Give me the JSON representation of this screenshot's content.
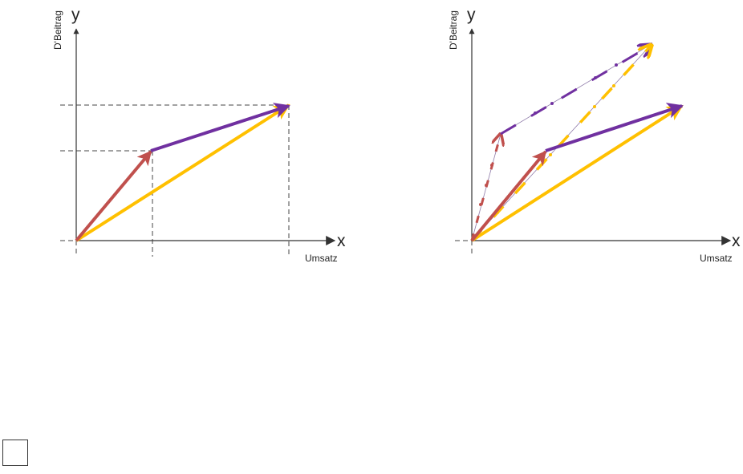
{
  "colors": {
    "red_vector": "#c0504d",
    "purple_vector": "#7030a0",
    "yellow_vector": "#ffc000",
    "axis": "#333333",
    "guide": "#444444"
  },
  "left_diagram": {
    "y_axis_letter": "y",
    "x_axis_letter": "x",
    "y_axis_label": "D'Beitrag",
    "x_axis_label": "Umsatz"
  },
  "right_diagram": {
    "y_axis_letter": "y",
    "x_axis_letter": "x",
    "y_axis_label": "D'Beitrag",
    "x_axis_label": "Umsatz"
  },
  "checkbox": {
    "checked": false
  }
}
